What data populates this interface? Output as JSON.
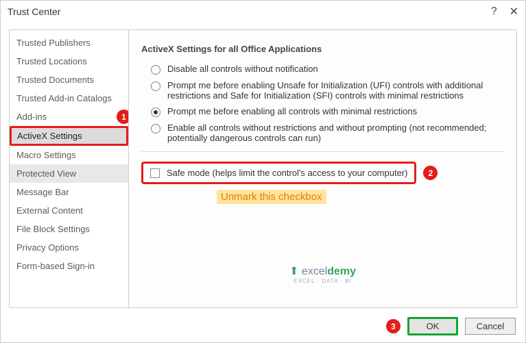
{
  "dialog": {
    "title": "Trust Center"
  },
  "sidebar": {
    "items": [
      "Trusted Publishers",
      "Trusted Locations",
      "Trusted Documents",
      "Trusted Add-in Catalogs",
      "Add-ins",
      "ActiveX Settings",
      "Macro Settings",
      "Protected View",
      "Message Bar",
      "External Content",
      "File Block Settings",
      "Privacy Options",
      "Form-based Sign-in"
    ]
  },
  "content": {
    "section_title": "ActiveX Settings for all Office Applications",
    "options": [
      "Disable all controls without notification",
      "Prompt me before enabling Unsafe for Initialization (UFI) controls with additional restrictions and Safe for Initialization (SFI) controls with minimal restrictions",
      "Prompt me before enabling all controls with minimal restrictions",
      "Enable all controls without restrictions and without prompting (not recommended; potentially dangerous controls can run)"
    ],
    "selected_option_index": 2,
    "safe_mode_label": "Safe mode (helps limit the control's access to your computer)",
    "note": "Unmark this checkbox"
  },
  "buttons": {
    "ok": "OK",
    "cancel": "Cancel"
  },
  "badges": {
    "one": "1",
    "two": "2",
    "three": "3"
  },
  "watermark": {
    "brand_a": "excel",
    "brand_b": "demy",
    "tag": "EXCEL · DATA · BI"
  }
}
